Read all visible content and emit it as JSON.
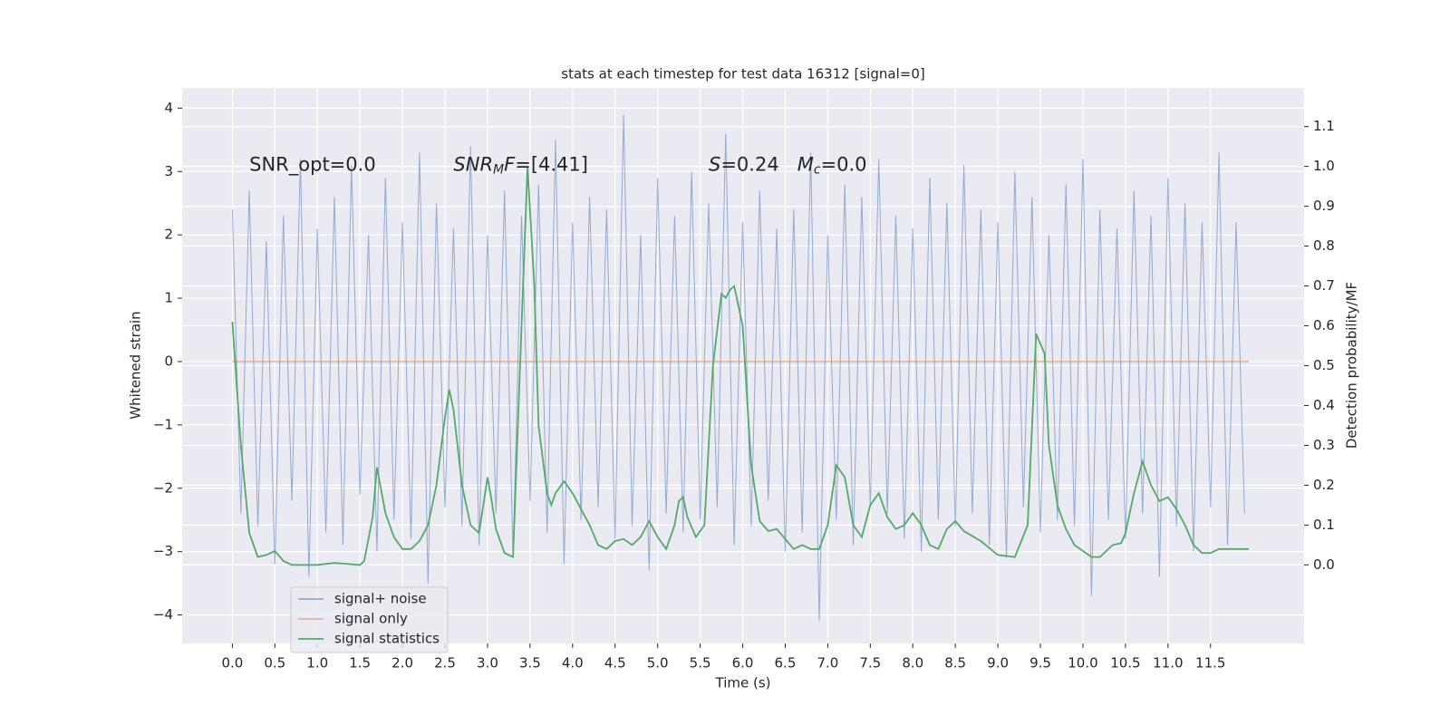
{
  "chart_data": {
    "type": "line",
    "title": "stats at each timestep for test data 16312 [signal=0]",
    "xlabel": "Time (s)",
    "ylabel": "Whitened strain",
    "y2label": "Detection probability/MF",
    "xlim": [
      -0.59,
      12.6
    ],
    "ylim": [
      -4.45,
      4.32
    ],
    "y2lim": [
      -0.197,
      1.197
    ],
    "grid": true,
    "legend": "lower left",
    "xticks": [
      {
        "value": 0,
        "label": "0.0"
      },
      0.5,
      {
        "value": 1,
        "label": "1.0"
      },
      1.5,
      {
        "value": 2,
        "label": "2.0"
      },
      2.5,
      {
        "value": 3,
        "label": "3.0"
      },
      3.5,
      {
        "value": 4,
        "label": "4.0"
      },
      4.5,
      {
        "value": 5,
        "label": "5.0"
      },
      5.5,
      {
        "value": 6,
        "label": "6.0"
      },
      6.5,
      {
        "value": 7,
        "label": "7.0"
      },
      7.5,
      {
        "value": 8,
        "label": "8.0"
      },
      8.5,
      {
        "value": 9,
        "label": "9.0"
      },
      9.5,
      {
        "value": 10,
        "label": "10.0"
      },
      10.5,
      {
        "value": 11,
        "label": "11.0"
      },
      11.5
    ],
    "yticks": [
      {
        "value": -4,
        "label": "−4"
      },
      {
        "value": -3,
        "label": "−3"
      },
      {
        "value": -2,
        "label": "−2"
      },
      {
        "value": -1,
        "label": "−1"
      },
      0,
      1,
      2,
      3,
      4
    ],
    "y2ticks": [
      {
        "value": 0,
        "label": "0.0"
      },
      0.1,
      0.2,
      0.3,
      0.4,
      0.5,
      0.6,
      0.7,
      0.8,
      0.9,
      {
        "value": 1,
        "label": "1.0"
      },
      1.1
    ],
    "annotations": [
      {
        "x": 0.2,
        "y": 3.1,
        "parts": [
          {
            "text": "SNR_opt=0.0"
          }
        ]
      },
      {
        "x": 2.6,
        "y": 3.1,
        "parts": [
          {
            "text": "SNR",
            "italic": true
          },
          {
            "text": "M",
            "italic": true,
            "sub": true
          },
          {
            "text": "F",
            "italic": true
          },
          {
            "text": "=[4.41]"
          }
        ]
      },
      {
        "x": 5.6,
        "y": 3.1,
        "parts": [
          {
            "text": "S",
            "italic": true
          },
          {
            "text": "=0.24   "
          },
          {
            "text": "M",
            "italic": true
          },
          {
            "text": "c",
            "italic": true,
            "sub": true
          },
          {
            "text": "=0.0"
          }
        ]
      }
    ],
    "series": [
      {
        "name": "signal+ noise",
        "color": "#4c72b0",
        "axis": "y",
        "x": [
          0,
          0.1,
          0.2,
          0.3,
          0.4,
          0.5,
          0.6,
          0.7,
          0.8,
          0.9,
          1,
          1.1,
          1.2,
          1.3,
          1.4,
          1.5,
          1.6,
          1.7,
          1.8,
          1.9,
          2,
          2.1,
          2.2,
          2.3,
          2.4,
          2.5,
          2.6,
          2.7,
          2.8,
          2.9,
          3,
          3.1,
          3.2,
          3.3,
          3.4,
          3.5,
          3.6,
          3.7,
          3.8,
          3.9,
          4,
          4.1,
          4.2,
          4.3,
          4.4,
          4.5,
          4.6,
          4.7,
          4.8,
          4.9,
          5,
          5.1,
          5.2,
          5.3,
          5.4,
          5.5,
          5.6,
          5.7,
          5.8,
          5.9,
          6,
          6.1,
          6.2,
          6.3,
          6.4,
          6.5,
          6.6,
          6.7,
          6.8,
          6.9,
          7,
          7.1,
          7.2,
          7.3,
          7.4,
          7.5,
          7.6,
          7.7,
          7.8,
          7.9,
          8,
          8.1,
          8.2,
          8.3,
          8.4,
          8.5,
          8.6,
          8.7,
          8.8,
          8.9,
          9,
          9.1,
          9.2,
          9.3,
          9.4,
          9.5,
          9.6,
          9.7,
          9.8,
          9.9,
          10,
          10.1,
          10.2,
          10.3,
          10.4,
          10.5,
          10.6,
          10.7,
          10.8,
          10.9,
          11,
          11.1,
          11.2,
          11.3,
          11.4,
          11.5,
          11.6,
          11.7,
          11.8,
          11.9
        ],
        "values": [
          2.4,
          -2.4,
          2.7,
          -2.6,
          1.9,
          -3.2,
          2.3,
          -2.2,
          3.2,
          -3.4,
          2.1,
          -2.7,
          2.6,
          -2.9,
          3.1,
          -2.1,
          2.0,
          -3.0,
          2.9,
          -2.5,
          2.2,
          -2.8,
          3.3,
          -3.5,
          2.5,
          -2.3,
          2.1,
          -2.6,
          3.4,
          -2.9,
          2.0,
          -2.4,
          2.7,
          -3.1,
          2.3,
          -2.2,
          2.8,
          -2.7,
          3.5,
          -3.2,
          2.2,
          -2.5,
          2.6,
          -2.3,
          2.4,
          -2.8,
          3.9,
          -2.6,
          2.0,
          -3.3,
          2.9,
          -2.4,
          2.3,
          -2.7,
          3.0,
          -2.5,
          2.5,
          -2.3,
          3.6,
          -2.9,
          2.2,
          -2.6,
          2.7,
          -2.2,
          2.1,
          -3.0,
          2.4,
          -2.7,
          3.3,
          -4.1,
          2.0,
          -2.5,
          2.8,
          -2.9,
          2.6,
          -2.3,
          3.2,
          -2.4,
          2.3,
          -2.8,
          2.1,
          -3.0,
          2.9,
          -2.5,
          2.5,
          -2.6,
          3.1,
          -2.4,
          2.4,
          -2.9,
          2.2,
          -3.1,
          3.0,
          -2.3,
          2.6,
          -2.7,
          2.0,
          -2.5,
          2.8,
          -2.6,
          3.2,
          -3.7,
          2.4,
          -2.5,
          2.1,
          -2.8,
          2.7,
          -2.4,
          2.3,
          -3.4,
          2.9,
          -2.6,
          2.5,
          -3.0,
          2.2,
          -2.3,
          3.3,
          -2.9,
          2.2,
          -2.4
        ]
      },
      {
        "name": "signal only",
        "color": "#dd8452",
        "axis": "y",
        "x": [
          0,
          11.95
        ],
        "values": [
          0,
          0
        ]
      },
      {
        "name": "signal statistics",
        "color": "#55a868",
        "axis": "y2",
        "x": [
          0,
          0.1,
          0.2,
          0.3,
          0.4,
          0.5,
          0.6,
          0.7,
          0.8,
          1.0,
          1.2,
          1.5,
          1.55,
          1.65,
          1.7,
          1.8,
          1.9,
          2.0,
          2.1,
          2.2,
          2.3,
          2.4,
          2.5,
          2.55,
          2.6,
          2.7,
          2.8,
          2.9,
          3.0,
          3.05,
          3.1,
          3.2,
          3.3,
          3.4,
          3.47,
          3.55,
          3.6,
          3.7,
          3.75,
          3.8,
          3.9,
          4.0,
          4.1,
          4.2,
          4.3,
          4.4,
          4.5,
          4.6,
          4.7,
          4.8,
          4.9,
          5.0,
          5.1,
          5.2,
          5.25,
          5.3,
          5.35,
          5.45,
          5.55,
          5.65,
          5.75,
          5.8,
          5.85,
          5.9,
          6.0,
          6.1,
          6.2,
          6.3,
          6.4,
          6.5,
          6.6,
          6.7,
          6.8,
          6.9,
          7.0,
          7.1,
          7.2,
          7.3,
          7.4,
          7.5,
          7.6,
          7.7,
          7.8,
          7.9,
          8.0,
          8.1,
          8.2,
          8.3,
          8.4,
          8.5,
          8.6,
          8.8,
          9.0,
          9.2,
          9.35,
          9.45,
          9.55,
          9.6,
          9.7,
          9.8,
          9.9,
          10.1,
          10.2,
          10.35,
          10.45,
          10.5,
          10.6,
          10.7,
          10.8,
          10.9,
          11.0,
          11.1,
          11.2,
          11.3,
          11.4,
          11.5,
          11.6,
          11.7,
          11.95
        ],
        "values": [
          0.61,
          0.3,
          0.08,
          0.02,
          0.025,
          0.035,
          0.01,
          0.0,
          0.0,
          0.0,
          0.005,
          0.0,
          0.01,
          0.12,
          0.245,
          0.13,
          0.07,
          0.04,
          0.04,
          0.06,
          0.1,
          0.2,
          0.37,
          0.44,
          0.39,
          0.2,
          0.1,
          0.08,
          0.22,
          0.16,
          0.09,
          0.03,
          0.02,
          0.6,
          1.0,
          0.7,
          0.35,
          0.18,
          0.15,
          0.18,
          0.21,
          0.18,
          0.14,
          0.1,
          0.05,
          0.04,
          0.06,
          0.065,
          0.05,
          0.07,
          0.11,
          0.07,
          0.04,
          0.1,
          0.16,
          0.17,
          0.12,
          0.07,
          0.1,
          0.5,
          0.68,
          0.67,
          0.69,
          0.7,
          0.6,
          0.25,
          0.11,
          0.085,
          0.09,
          0.065,
          0.04,
          0.05,
          0.04,
          0.04,
          0.1,
          0.25,
          0.22,
          0.1,
          0.07,
          0.15,
          0.18,
          0.12,
          0.09,
          0.1,
          0.13,
          0.1,
          0.05,
          0.04,
          0.09,
          0.11,
          0.085,
          0.06,
          0.025,
          0.02,
          0.1,
          0.58,
          0.53,
          0.3,
          0.15,
          0.09,
          0.05,
          0.02,
          0.02,
          0.05,
          0.055,
          0.08,
          0.18,
          0.26,
          0.2,
          0.16,
          0.17,
          0.14,
          0.1,
          0.05,
          0.03,
          0.03,
          0.04,
          0.04,
          0.04
        ]
      }
    ]
  }
}
